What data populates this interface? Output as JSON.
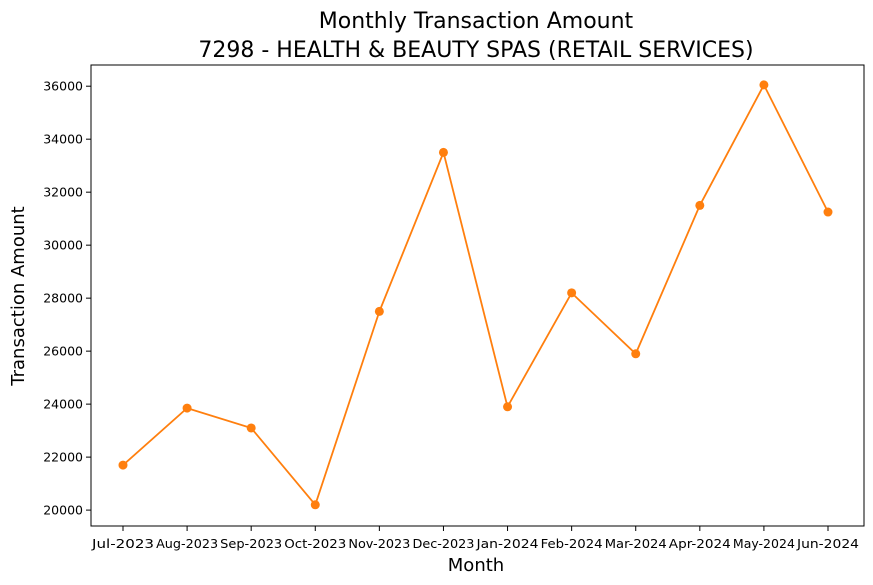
{
  "chart_data": {
    "type": "line",
    "title": "Monthly Transaction Amount",
    "subtitle": "7298 - HEALTH & BEAUTY SPAS (RETAIL SERVICES)",
    "xlabel": "Month",
    "ylabel": "Transaction Amount",
    "categories": [
      "Jul-2023",
      "Aug-2023",
      "Sep-2023",
      "Oct-2023",
      "Nov-2023",
      "Dec-2023",
      "Jan-2024",
      "Feb-2024",
      "Mar-2024",
      "Apr-2024",
      "May-2024",
      "Jun-2024"
    ],
    "series": [
      {
        "values": [
          21700,
          23850,
          23100,
          20200,
          27500,
          33500,
          23900,
          28200,
          25900,
          31500,
          36050,
          31250
        ],
        "color": "#ff7f0e"
      }
    ],
    "ylim": [
      19400,
      36800
    ],
    "yticks": [
      20000,
      22000,
      24000,
      26000,
      28000,
      30000,
      32000,
      34000,
      36000
    ],
    "grid": false,
    "markers": true
  }
}
